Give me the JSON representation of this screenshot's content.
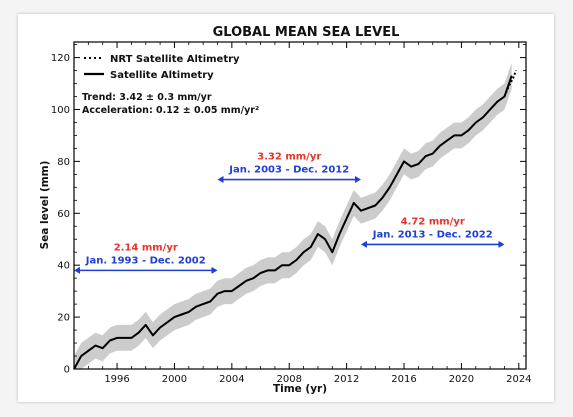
{
  "chart_data": {
    "type": "line",
    "title": "GLOBAL MEAN SEA LEVEL",
    "xlabel": "Time (yr)",
    "ylabel": "Sea level (mm)",
    "xlim": [
      1993,
      2024.5
    ],
    "ylim": [
      0,
      126
    ],
    "x_ticks": [
      "1996",
      "2000",
      "2004",
      "2008",
      "2012",
      "2016",
      "2020",
      "2024"
    ],
    "y_ticks": [
      "0",
      "20",
      "40",
      "60",
      "80",
      "100",
      "120"
    ],
    "grid": false,
    "legend": {
      "position": "top-left",
      "entries": [
        {
          "label": "NRT Satellite Altimetry",
          "style": "dotted"
        },
        {
          "label": "Satellite Altimetry",
          "style": "solid"
        }
      ]
    },
    "stats": {
      "trend": "Trend: 3.42 ± 0.3 mm/yr",
      "acceleration": "Acceleration: 0.12 ± 0.05 mm/yr²"
    },
    "periods": [
      {
        "rate": "2.14 mm/yr",
        "label": "Jan. 1993 - Dec. 2002",
        "start": 1993,
        "end": 2003,
        "y": 38
      },
      {
        "rate": "3.32 mm/yr",
        "label": "Jan. 2003 - Dec. 2012",
        "start": 2003,
        "end": 2013,
        "y": 73
      },
      {
        "rate": "4.72 mm/yr",
        "label": "Jan. 2013 - Dec. 2022",
        "start": 2013,
        "end": 2023,
        "y": 48
      }
    ],
    "colors": {
      "series": "#000000",
      "uncertainty_band": "#cccccc",
      "rate_text": "#e8332a",
      "period_text": "#1f3fd6",
      "arrow": "#1f3fd6"
    },
    "series": [
      {
        "name": "Satellite Altimetry",
        "style": "solid",
        "uncertainty": 5,
        "x": [
          1993.0,
          1993.5,
          1994.0,
          1994.5,
          1995.0,
          1995.5,
          1996.0,
          1996.5,
          1997.0,
          1997.5,
          1998.0,
          1998.5,
          1999.0,
          1999.5,
          2000.0,
          2000.5,
          2001.0,
          2001.5,
          2002.0,
          2002.5,
          2003.0,
          2003.5,
          2004.0,
          2004.5,
          2005.0,
          2005.5,
          2006.0,
          2006.5,
          2007.0,
          2007.5,
          2008.0,
          2008.5,
          2009.0,
          2009.5,
          2010.0,
          2010.5,
          2011.0,
          2011.5,
          2012.0,
          2012.5,
          2013.0,
          2013.5,
          2014.0,
          2014.5,
          2015.0,
          2015.5,
          2016.0,
          2016.5,
          2017.0,
          2017.5,
          2018.0,
          2018.5,
          2019.0,
          2019.5,
          2020.0,
          2020.5,
          2021.0,
          2021.5,
          2022.0,
          2022.5,
          2023.0,
          2023.5
        ],
        "y": [
          0,
          5,
          7,
          9,
          8,
          11,
          12,
          12,
          12,
          14,
          17,
          13,
          16,
          18,
          20,
          21,
          22,
          24,
          25,
          26,
          29,
          30,
          30,
          32,
          34,
          35,
          37,
          38,
          38,
          40,
          40,
          42,
          45,
          47,
          52,
          50,
          45,
          52,
          58,
          64,
          61,
          62,
          63,
          66,
          70,
          75,
          80,
          78,
          79,
          82,
          83,
          86,
          88,
          90,
          90,
          92,
          95,
          97,
          100,
          103,
          105,
          113
        ]
      },
      {
        "name": "NRT Satellite Altimetry",
        "style": "dotted",
        "x": [
          2023.0,
          2023.3,
          2023.6,
          2023.8
        ],
        "y": [
          105,
          109,
          112,
          115
        ]
      }
    ]
  }
}
